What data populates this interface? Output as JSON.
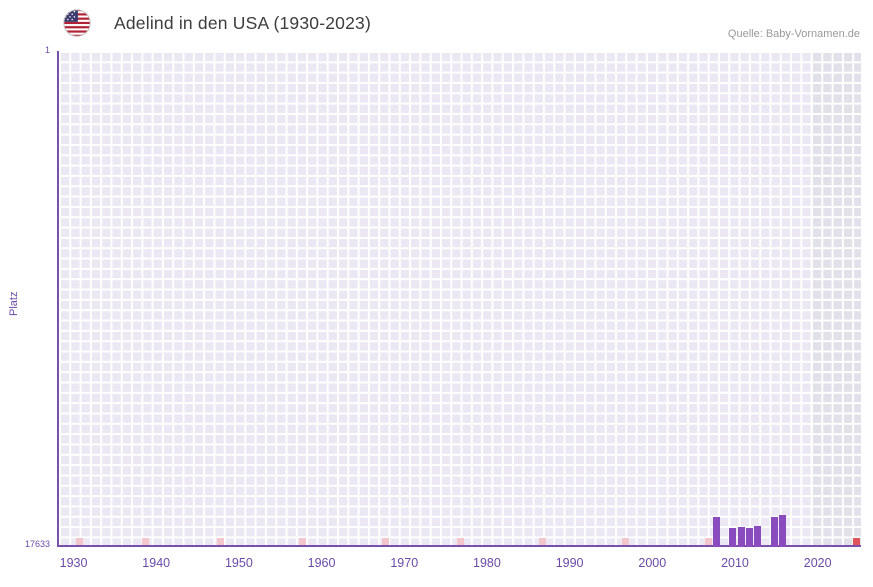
{
  "header": {
    "title": "Adelind in den USA (1930-2023)",
    "source": "Quelle: Baby-Vornamen.de"
  },
  "chart_data": {
    "type": "bar",
    "title": "Adelind in den USA (1930-2023)",
    "xlabel": "",
    "ylabel": "Platz",
    "grid": true,
    "legend": false,
    "y_axis": {
      "min": 1,
      "max": 17633,
      "inverted": true,
      "top_label": "1",
      "bottom_label": "17633"
    },
    "x_axis": {
      "domain": [
        1928,
        2025
      ],
      "ticks": [
        "1930",
        "1940",
        "1950",
        "1960",
        "1970",
        "1980",
        "1990",
        "2000",
        "2010",
        "2020"
      ]
    },
    "series": [
      {
        "name": "Platz",
        "points": [
          {
            "year": 2007,
            "rank": 16550
          },
          {
            "year": 2009,
            "rank": 16950
          },
          {
            "year": 2010,
            "rank": 16930
          },
          {
            "year": 2011,
            "rank": 16960
          },
          {
            "year": 2012,
            "rank": 16900
          },
          {
            "year": 2014,
            "rank": 16570
          },
          {
            "year": 2015,
            "rank": 16500
          }
        ]
      }
    ],
    "unranked_marker_years": [
      1930,
      1938,
      1947,
      1957,
      1967,
      1976,
      1986,
      1996,
      2006
    ],
    "current_marker_year": 2024,
    "shaded_region": {
      "from": 2019,
      "to": 2025
    },
    "colors": {
      "bar": "#8a4bbf",
      "plot_bg": "#ebe8f4",
      "grid_line": "#ffffff",
      "shaded_bg": "#e2e0e8",
      "axis_line": "#7a50ad",
      "tick_label": "#6b4aa8",
      "unranked_marker": "#f3c6ce",
      "current_marker": "#e0545c",
      "title_text": "#3d3d3d",
      "source_text": "#999999"
    }
  }
}
